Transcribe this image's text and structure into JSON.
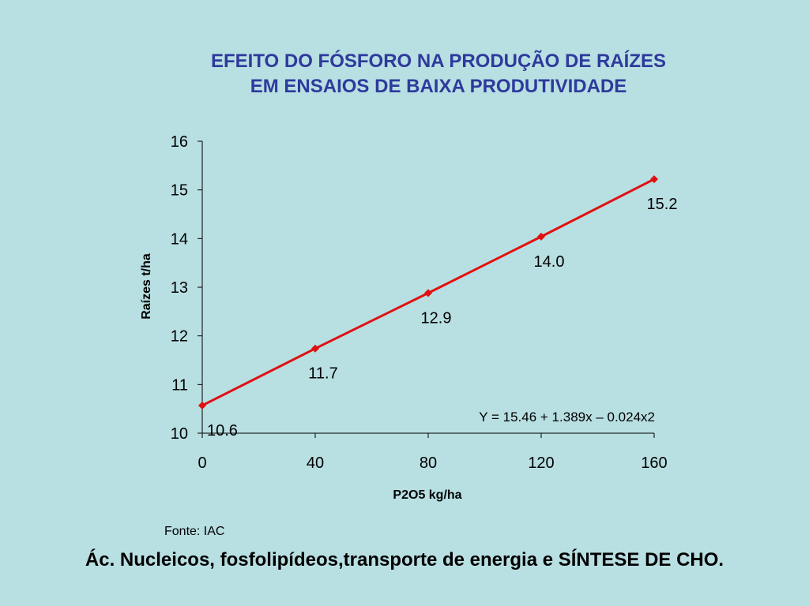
{
  "title": {
    "line1": "EFEITO DO FÓSFORO NA PRODUÇÃO DE RAÍZES",
    "line2": "EM ENSAIOS DE BAIXA PRODUTIVIDADE"
  },
  "chart_data": {
    "type": "line",
    "title": "EFEITO DO FÓSFORO NA PRODUÇÃO DE RAÍZES EM ENSAIOS DE BAIXA PRODUTIVIDADE",
    "xlabel": "P2O5 kg/ha",
    "ylabel": "Raízes t/ha",
    "x": [
      0,
      40,
      80,
      120,
      160
    ],
    "xticks": [
      "0",
      "40",
      "80",
      "120",
      "160"
    ],
    "yticks": [
      "10",
      "11",
      "12",
      "13",
      "14",
      "15",
      "16"
    ],
    "xlim": [
      0,
      160
    ],
    "ylim": [
      10,
      16
    ],
    "series": [
      {
        "values": [
          10.57,
          11.74,
          12.88,
          14.04,
          15.22
        ],
        "labels": [
          "10.6",
          "11.7",
          "12.9",
          "14.0",
          "15.2"
        ],
        "color": "#e01010"
      }
    ],
    "annotation": "Y = 15.46 + 1.389x – 0.024x2",
    "grid": false,
    "legend": "none"
  },
  "source": "Fonte: IAC",
  "footer": "Ác. Nucleicos, fosfolipídeos,transporte de energia e SÍNTESE DE CHO."
}
